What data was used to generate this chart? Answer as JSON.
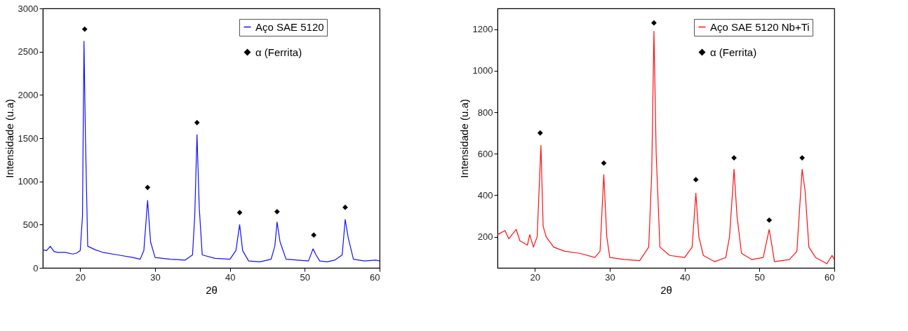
{
  "chart_data": [
    {
      "type": "line",
      "xlabel": "2θ",
      "ylabel": "Intensidade (u.a)",
      "xlim": [
        15,
        60
      ],
      "xticks": [
        20,
        30,
        40,
        50,
        60
      ],
      "ylim": [
        0,
        3000
      ],
      "yticks": [
        0,
        500,
        1000,
        1500,
        2000,
        2500,
        3000
      ],
      "legend": "top right",
      "grid": false,
      "series": [
        {
          "name": "Aço SAE 5120",
          "color": "#1010ff",
          "marker": "none",
          "x": [
            15,
            15.5,
            16,
            16.5,
            17,
            18,
            19,
            19.5,
            20,
            20.3,
            20.5,
            20.7,
            21,
            22,
            23,
            25,
            27,
            28,
            28.5,
            29,
            29.4,
            30,
            32,
            34,
            35,
            35.3,
            35.6,
            35.9,
            36.3,
            38,
            40,
            40.8,
            41.3,
            41.7,
            42.5,
            44,
            45.5,
            46,
            46.3,
            46.7,
            47.5,
            49,
            50.5,
            51.1,
            51.5,
            52,
            53,
            54,
            55,
            55.4,
            55.8,
            56.5,
            58,
            59.5,
            60
          ],
          "values": [
            210,
            200,
            250,
            190,
            180,
            180,
            160,
            170,
            200,
            600,
            2620,
            1500,
            250,
            210,
            180,
            150,
            120,
            100,
            200,
            780,
            300,
            120,
            100,
            90,
            150,
            600,
            1540,
            700,
            150,
            110,
            100,
            200,
            500,
            200,
            80,
            70,
            100,
            250,
            530,
            300,
            100,
            90,
            80,
            220,
            150,
            80,
            70,
            90,
            150,
            560,
            350,
            100,
            80,
            90,
            80
          ]
        },
        {
          "name": "α (Ferrita)",
          "type": "scatter",
          "color": "#000000",
          "marker": "diamond",
          "x": [
            20.6,
            29,
            35.6,
            41.3,
            46.3,
            51.2,
            55.4
          ],
          "values": [
            2760,
            930,
            1680,
            640,
            650,
            380,
            700
          ]
        }
      ]
    },
    {
      "type": "line",
      "xlabel": "2θ",
      "ylabel": "Intensidade (u.a)",
      "xlim": [
        15,
        60
      ],
      "xticks": [
        20,
        30,
        40,
        50,
        60
      ],
      "ylim": [
        50,
        1300
      ],
      "yticks": [
        200,
        400,
        600,
        800,
        1000,
        1200
      ],
      "legend": "top right",
      "grid": false,
      "series": [
        {
          "name": "Aço SAE 5120 Nb+Ti",
          "color": "#ff1010",
          "marker": "none",
          "x": [
            15,
            16,
            16.5,
            17.5,
            18,
            19,
            19.3,
            19.8,
            20.3,
            20.8,
            21.1,
            21.5,
            22.5,
            24,
            26,
            28,
            28.7,
            29.2,
            29.6,
            30,
            32,
            34,
            35.2,
            35.6,
            35.9,
            36.2,
            36.7,
            38,
            40,
            41,
            41.5,
            41.9,
            42.5,
            44,
            45.5,
            46,
            46.6,
            47,
            47.6,
            49,
            50.5,
            51.3,
            51.7,
            52,
            54,
            55,
            55.7,
            56.1,
            56.6,
            57.5,
            59,
            59.7,
            60
          ],
          "values": [
            210,
            230,
            190,
            235,
            180,
            160,
            210,
            150,
            200,
            640,
            250,
            200,
            150,
            130,
            120,
            100,
            130,
            500,
            200,
            100,
            90,
            85,
            150,
            500,
            1190,
            600,
            150,
            110,
            100,
            150,
            410,
            200,
            110,
            80,
            100,
            200,
            525,
            300,
            120,
            90,
            100,
            235,
            150,
            80,
            90,
            130,
            525,
            420,
            150,
            100,
            70,
            110,
            90
          ]
        },
        {
          "name": "α (Ferrita)",
          "type": "scatter",
          "color": "#000000",
          "marker": "diamond",
          "x": [
            20.7,
            29.2,
            35.9,
            41.5,
            46.6,
            51.3,
            55.7
          ],
          "values": [
            700,
            555,
            1230,
            475,
            580,
            280,
            580
          ]
        }
      ]
    }
  ]
}
